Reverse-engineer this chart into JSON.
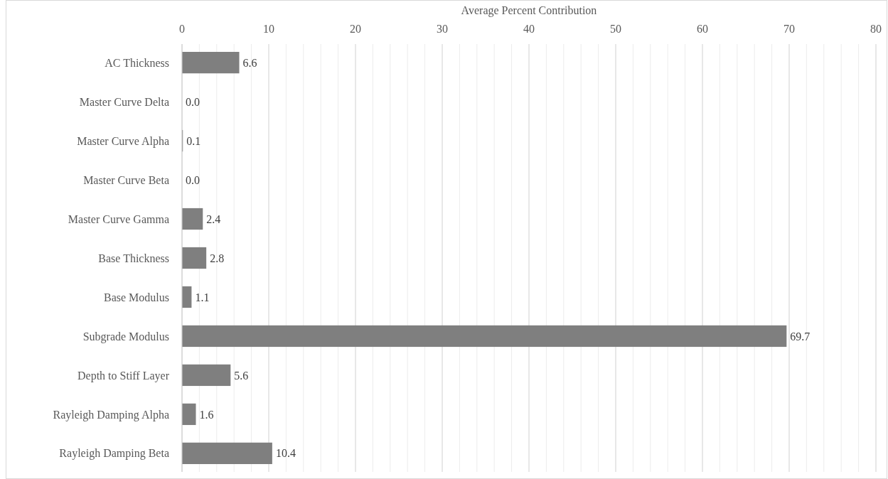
{
  "chart_data": {
    "type": "bar",
    "orientation": "horizontal",
    "xlabel": "Average Percent Contribution",
    "categories": [
      "AC Thickness",
      "Master Curve Delta",
      "Master Curve Alpha",
      "Master Curve Beta",
      "Master Curve Gamma",
      "Base Thickness",
      "Base Modulus",
      "Subgrade Modulus",
      "Depth to Stiff Layer",
      "Rayleigh Damping Alpha",
      "Rayleigh Damping Beta"
    ],
    "values": [
      6.6,
      0.0,
      0.1,
      0.0,
      2.4,
      2.8,
      1.1,
      69.7,
      5.6,
      1.6,
      10.4
    ],
    "value_labels": [
      "6.6",
      "0.0",
      "0.1",
      "0.0",
      "2.4",
      "2.8",
      "1.1",
      "69.7",
      "5.6",
      "1.6",
      "10.4"
    ],
    "color": "#7f7f7f",
    "xlim": [
      0,
      80
    ],
    "xticks": [
      0,
      {
        "value": 2,
        "label": null
      },
      {
        "value": 4,
        "label": null
      },
      {
        "value": 6,
        "label": null
      },
      {
        "value": 8,
        "label": null
      },
      10,
      {
        "value": 12,
        "label": null
      },
      {
        "value": 14,
        "label": null
      },
      {
        "value": 16,
        "label": null
      },
      {
        "value": 18,
        "label": null
      },
      20,
      {
        "value": 22,
        "label": null
      },
      {
        "value": 24,
        "label": null
      },
      {
        "value": 26,
        "label": null
      },
      {
        "value": 28,
        "label": null
      },
      30,
      {
        "value": 32,
        "label": null
      },
      {
        "value": 34,
        "label": null
      },
      {
        "value": 36,
        "label": null
      },
      {
        "value": 38,
        "label": null
      },
      40,
      {
        "value": 42,
        "label": null
      },
      {
        "value": 44,
        "label": null
      },
      {
        "value": 46,
        "label": null
      },
      {
        "value": 48,
        "label": null
      },
      50,
      {
        "value": 52,
        "label": null
      },
      {
        "value": 54,
        "label": null
      },
      {
        "value": 56,
        "label": null
      },
      {
        "value": 58,
        "label": null
      },
      60,
      {
        "value": 62,
        "label": null
      },
      {
        "value": 64,
        "label": null
      },
      {
        "value": 66,
        "label": null
      },
      {
        "value": 68,
        "label": null
      },
      70,
      {
        "value": 72,
        "label": null
      },
      {
        "value": 74,
        "label": null
      },
      {
        "value": 76,
        "label": null
      },
      {
        "value": 78,
        "label": null
      },
      80
    ],
    "grid": "x"
  }
}
